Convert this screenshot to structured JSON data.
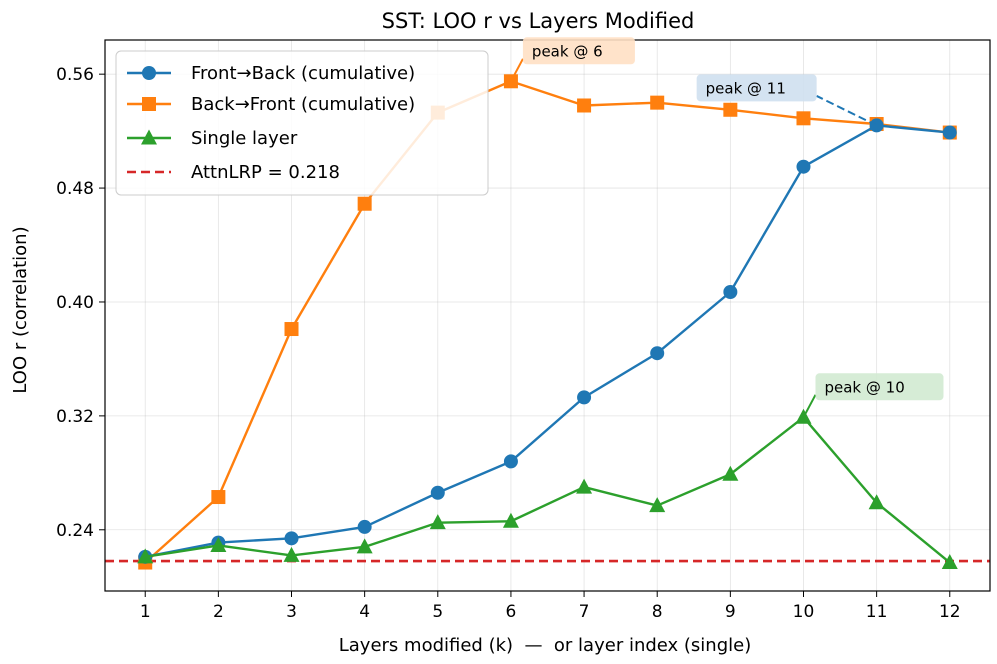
{
  "chart_data": {
    "type": "line",
    "title": "SST: LOO r vs Layers Modified",
    "xlabel": "Layers modified (k)  —  or layer index (single)",
    "ylabel": "LOO r (correlation)",
    "xlim": [
      0.45,
      12.55
    ],
    "ylim": [
      0.197,
      0.584
    ],
    "x": [
      1,
      2,
      3,
      4,
      5,
      6,
      7,
      8,
      9,
      10,
      11,
      12
    ],
    "x_ticks": [
      "1",
      "2",
      "3",
      "4",
      "5",
      "6",
      "7",
      "8",
      "9",
      "10",
      "11",
      "12"
    ],
    "y_ticks": [
      {
        "value": 0.24,
        "label": "0.24"
      },
      {
        "value": 0.32,
        "label": "0.32"
      },
      {
        "value": 0.4,
        "label": "0.40"
      },
      {
        "value": 0.48,
        "label": "0.48"
      },
      {
        "value": 0.56,
        "label": "0.56"
      }
    ],
    "grid": true,
    "legend_position": "top-left",
    "series": [
      {
        "name": "Front→Back (cumulative)",
        "color": "#1f77b4",
        "marker": "circle",
        "values": [
          0.221,
          0.231,
          0.234,
          0.242,
          0.266,
          0.288,
          0.333,
          0.364,
          0.407,
          0.495,
          0.524,
          0.519
        ]
      },
      {
        "name": "Back→Front (cumulative)",
        "color": "#ff7f0e",
        "marker": "square",
        "values": [
          0.217,
          0.263,
          0.381,
          0.469,
          0.533,
          0.555,
          0.538,
          0.54,
          0.535,
          0.529,
          0.525,
          0.519
        ]
      },
      {
        "name": "Single layer",
        "color": "#2ca02c",
        "marker": "triangle",
        "values": [
          0.221,
          0.229,
          0.222,
          0.228,
          0.245,
          0.246,
          0.27,
          0.257,
          0.279,
          0.319,
          0.259,
          0.217
        ]
      }
    ],
    "reference_line": {
      "name": "AttnLRP = 0.218",
      "value": 0.218,
      "color": "#d62728",
      "style": "dashed"
    },
    "annotations": [
      {
        "text": "peak @ 6",
        "series": 1,
        "x": 6,
        "y": 0.555,
        "box_color": "#ffe0c4"
      },
      {
        "text": "peak @ 11",
        "series": 0,
        "x": 11,
        "y": 0.524,
        "box_color": "#cfe0ef"
      },
      {
        "text": "peak @ 10",
        "series": 2,
        "x": 10,
        "y": 0.319,
        "box_color": "#d2ead2"
      }
    ]
  }
}
